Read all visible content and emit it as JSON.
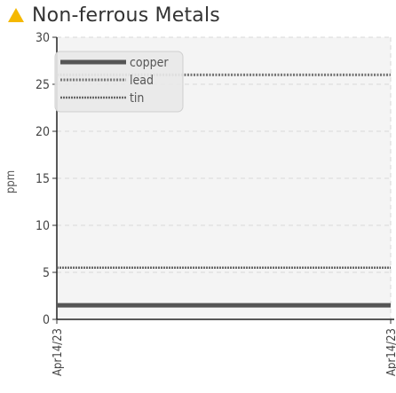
{
  "header": {
    "title": "Non-ferrous Metals",
    "icon": "warning-triangle-icon",
    "icon_color": "#f5b800"
  },
  "chart_data": {
    "type": "line",
    "title": "Non-ferrous Metals",
    "xlabel": "",
    "ylabel": "ppm",
    "x_ticks": [
      "Apr14/23",
      "Apr14/23"
    ],
    "ylim": [
      0,
      30
    ],
    "y_ticks": [
      0,
      5,
      10,
      15,
      20,
      25,
      30
    ],
    "grid": true,
    "legend_position": "top-left",
    "series": [
      {
        "name": "copper",
        "values": [
          1.5,
          1.5
        ],
        "color": "#555555",
        "style": "solid"
      },
      {
        "name": "lead",
        "values": [
          26,
          26
        ],
        "color": "#777777",
        "style": "dotted"
      },
      {
        "name": "tin",
        "values": [
          5.5,
          5.5
        ],
        "color": "#666666",
        "style": "dash-dot"
      }
    ]
  }
}
